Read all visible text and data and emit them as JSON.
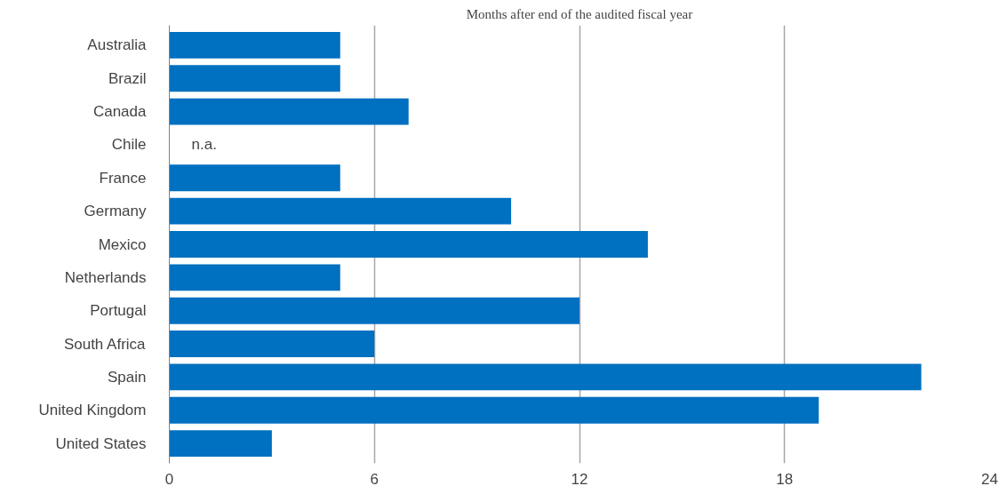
{
  "chart_data": {
    "type": "bar",
    "orientation": "horizontal",
    "title": "Months after end of the audited fiscal year",
    "categories": [
      "Australia",
      "Brazil",
      "Canada",
      "Chile",
      "France",
      "Germany",
      "Mexico",
      "Netherlands",
      "Portugal",
      "South Africa",
      "Spain",
      "United Kingdom",
      "United States"
    ],
    "values": [
      5,
      5,
      7,
      null,
      5,
      10,
      14,
      5,
      12,
      6,
      22,
      19,
      3
    ],
    "color": "#0070c0",
    "xlim": [
      0,
      24
    ],
    "xticks": [
      0,
      6,
      12,
      18,
      24
    ],
    "grid": "x",
    "annotations": [
      "n.a."
    ]
  }
}
